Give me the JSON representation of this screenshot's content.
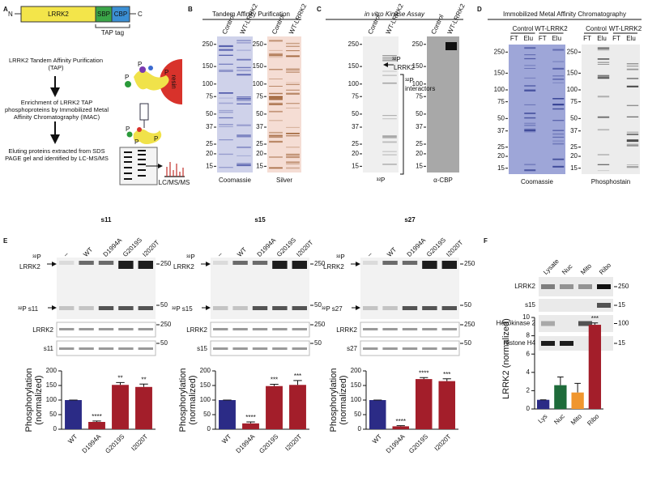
{
  "chart_data": [
    {
      "type": "bar",
      "title": "s11",
      "ylabel": "Phosphorylation (normalized)",
      "categories": [
        "WT",
        "D1994A",
        "G2019S",
        "I2020T"
      ],
      "values": [
        100,
        25,
        152,
        145
      ],
      "errors": [
        0,
        3,
        8,
        10
      ],
      "colors": [
        "#2b2b86",
        "#a31e2a",
        "#a31e2a",
        "#a31e2a"
      ],
      "ylim": [
        0,
        200
      ],
      "yticks": [
        0,
        50,
        100,
        150,
        200
      ],
      "annotations": [
        {
          "index": 1,
          "text": "****"
        },
        {
          "index": 2,
          "text": "**"
        },
        {
          "index": 3,
          "text": "**"
        }
      ]
    },
    {
      "type": "bar",
      "title": "s15",
      "ylabel": "Phosphorylation (normalized)",
      "categories": [
        "WT",
        "D1994A",
        "G2019S",
        "I2020T"
      ],
      "values": [
        100,
        20,
        148,
        152
      ],
      "errors": [
        0,
        5,
        6,
        15
      ],
      "colors": [
        "#2b2b86",
        "#a31e2a",
        "#a31e2a",
        "#a31e2a"
      ],
      "ylim": [
        0,
        200
      ],
      "yticks": [
        0,
        50,
        100,
        150,
        200
      ],
      "annotations": [
        {
          "index": 1,
          "text": "****"
        },
        {
          "index": 2,
          "text": "***"
        },
        {
          "index": 3,
          "text": "***"
        }
      ]
    },
    {
      "type": "bar",
      "title": "s27",
      "ylabel": "Phosphorylation (normalized)",
      "categories": [
        "WT",
        "D1994A",
        "G2019S",
        "I2020T"
      ],
      "values": [
        100,
        10,
        172,
        165
      ],
      "errors": [
        0,
        2,
        5,
        8
      ],
      "colors": [
        "#2b2b86",
        "#a31e2a",
        "#a31e2a",
        "#a31e2a"
      ],
      "ylim": [
        0,
        200
      ],
      "yticks": [
        0,
        50,
        100,
        150,
        200
      ],
      "annotations": [
        {
          "index": 1,
          "text": "****"
        },
        {
          "index": 2,
          "text": "****"
        },
        {
          "index": 3,
          "text": "***"
        }
      ]
    },
    {
      "type": "bar",
      "ylabel": "LRRK2 (normalized)",
      "categories": [
        "Lys",
        "Nuc",
        "Mito",
        "Ribo"
      ],
      "values": [
        1,
        2.6,
        1.8,
        9.2
      ],
      "errors": [
        0,
        0.9,
        1,
        0.2
      ],
      "colors": [
        "#2b2b86",
        "#1e6b3a",
        "#f0962e",
        "#a31e2a"
      ],
      "ylim": [
        0,
        10
      ],
      "yticks": [
        0,
        2,
        4,
        6,
        8,
        10
      ],
      "annotations": [
        {
          "index": 3,
          "text": "***"
        }
      ]
    }
  ],
  "panel_letters": [
    "A",
    "B",
    "C",
    "D",
    "E",
    "F"
  ],
  "panel_A": {
    "protein": {
      "n": "N",
      "name": "LRRK2",
      "sbp": "SBP",
      "cbp": "CBP",
      "c": "C",
      "tag": "TAP tag"
    },
    "steps": [
      "LRRK2 Tandem Affinity Purification (TAP)",
      "Enrichment of LRRK2 TAP phosphoproteins by Immobilized Metal Affinity Chromatography (IMAC)",
      "Eluting proteins extracted from SDS PAGE gel and identified by LC-MS/MS"
    ],
    "resin": "resin",
    "phospho": [
      "P",
      "P",
      "P",
      "P",
      "P",
      "P"
    ],
    "ms": "LC/MS/MS"
  },
  "panel_B": {
    "title": "Tandem Affinity Purification",
    "gels": [
      {
        "lanes": [
          "Control",
          "WT-LRRK2"
        ],
        "markers": [
          250,
          150,
          100,
          75,
          50,
          37,
          25,
          20,
          15
        ],
        "stain": "Coomassie"
      },
      {
        "lanes": [
          "Control",
          "WT-LRRK2"
        ],
        "markers": [
          250,
          150,
          100,
          75,
          50,
          37,
          25,
          20,
          15
        ],
        "stain": "Silver"
      }
    ]
  },
  "panel_C": {
    "title": "in vitro Kinase Assay",
    "gels": [
      {
        "lanes": [
          "Control",
          "WT-LRRK2"
        ],
        "markers": [
          250,
          150,
          100,
          75,
          50,
          37,
          25,
          20,
          15
        ],
        "stain": "³²P"
      },
      {
        "lanes": [
          "Control",
          "WT-LRRK2"
        ],
        "markers": [
          250,
          150,
          100,
          75,
          50,
          37,
          25,
          20,
          15
        ],
        "stain": "α-CBP"
      }
    ],
    "lrrk2_label": [
      "³²P",
      "LRRK2"
    ],
    "interactors_label": [
      "³²P",
      "interactors"
    ]
  },
  "panel_D": {
    "title": "Immobilized Metal Affinity Chromatography",
    "gels": [
      {
        "groups": [
          "Control",
          "WT-LRRK2"
        ],
        "lanes": [
          "FT",
          "Elu",
          "FT",
          "Elu"
        ],
        "markers": [
          250,
          150,
          100,
          75,
          50,
          37,
          25,
          20,
          15
        ],
        "stain": "Coomassie"
      },
      {
        "groups": [
          "Control",
          "WT-LRRK2"
        ],
        "lanes": [
          "FT",
          "Elu",
          "FT",
          "Elu"
        ],
        "markers": [
          250,
          150,
          100,
          75,
          50,
          37,
          25,
          20,
          15
        ],
        "stain": "Phosphostain"
      }
    ]
  },
  "panel_E": {
    "lanes": [
      "–",
      "WT",
      "D1994A",
      "G2019S",
      "I2020T"
    ],
    "blots": [
      {
        "p32": "³²P",
        "lrrk2": "LRRK2",
        "sub": "³²P s11",
        "load": [
          "LRRK2",
          "s11"
        ],
        "markers": [
          250,
          50,
          250,
          50
        ]
      },
      {
        "p32": "³²P",
        "lrrk2": "LRRK2",
        "sub": "³²P s15",
        "load": [
          "LRRK2",
          "s15"
        ],
        "markers": [
          250,
          50,
          250,
          50
        ]
      },
      {
        "p32": "³²P",
        "lrrk2": "LRRK2",
        "sub": "³²P s27",
        "load": [
          "LRRK2",
          "s27"
        ],
        "markers": [
          250,
          50,
          250,
          50
        ]
      }
    ]
  },
  "panel_F": {
    "lanes": [
      "Lysate",
      "Nuc",
      "Mito",
      "Ribo"
    ],
    "rows": [
      {
        "label": "LRRK2",
        "marker": 250
      },
      {
        "label": "s15",
        "marker": 15
      },
      {
        "label": "Hexokinase 2",
        "marker": 100
      },
      {
        "label": "Histone H4",
        "marker": 15
      }
    ]
  }
}
